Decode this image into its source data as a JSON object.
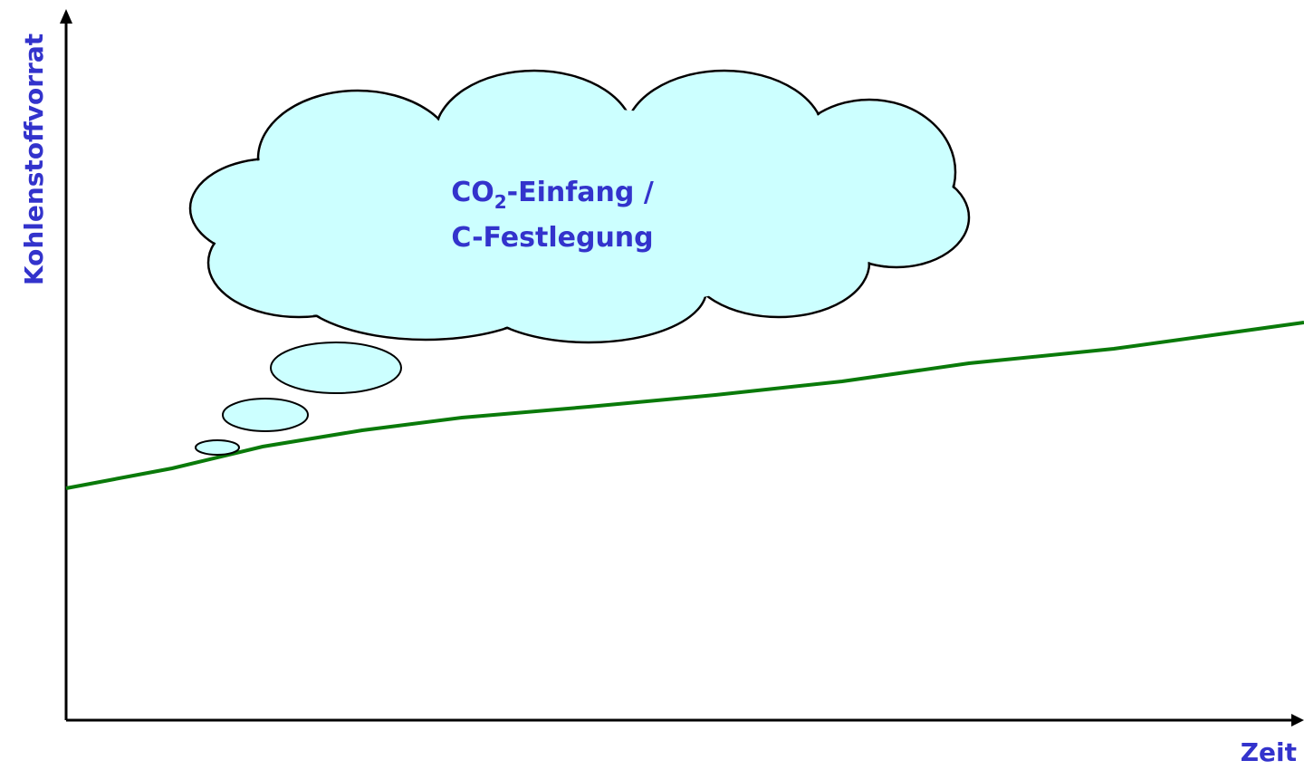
{
  "axes": {
    "y_label": "Kohlenstoffvorrat",
    "x_label": "Zeit"
  },
  "cloud": {
    "line1": {
      "text": "CO",
      "subscript": "2",
      "rest": "-Einfang /"
    },
    "line2": "C-Festlegung"
  }
}
